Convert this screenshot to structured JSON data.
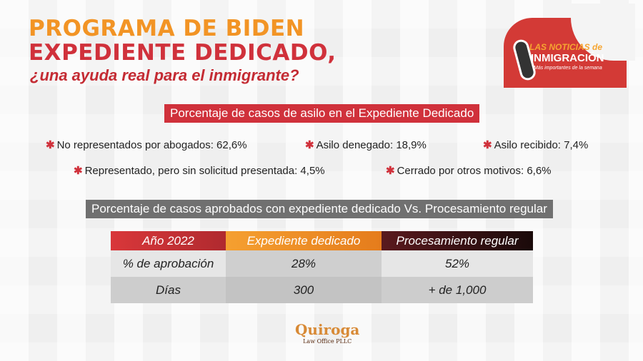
{
  "title": {
    "line1": "PROGRAMA DE BIDEN",
    "line2": "EXPEDIENTE DEDICADO,",
    "line3": "¿una ayuda real para el inmigrante?"
  },
  "badge": {
    "line1": "LAS NOTICIAS de",
    "line2": "INMIGRACIÓN",
    "line3": "Más importantes de la semana"
  },
  "section1": {
    "heading": "Porcentaje de casos de asilo en el Expediente Dedicado",
    "stats": [
      "No representados por abogados: 62,6%",
      "Asilo denegado: 18,9%",
      "Asilo recibido: 7,4%",
      "Representado, pero sin solicitud presentada: 4,5%",
      "Cerrado por otros motivos: 6,6%"
    ]
  },
  "section2": {
    "heading": "Porcentaje de casos aprobados con expediente dedicado Vs. Procesamiento regular"
  },
  "table": {
    "headers": [
      "Año 2022",
      "Expediente dedicado",
      "Procesamiento regular"
    ],
    "rows": [
      [
        "% de aprobación",
        "28%",
        "52%"
      ],
      [
        "Días",
        "300",
        "+ de 1,000"
      ]
    ]
  },
  "footer": {
    "brand": "Quiroga",
    "sub": "Law Office PLLC"
  },
  "colors": {
    "orange": "#f29425",
    "red": "#d0313b",
    "gray": "#707070"
  }
}
